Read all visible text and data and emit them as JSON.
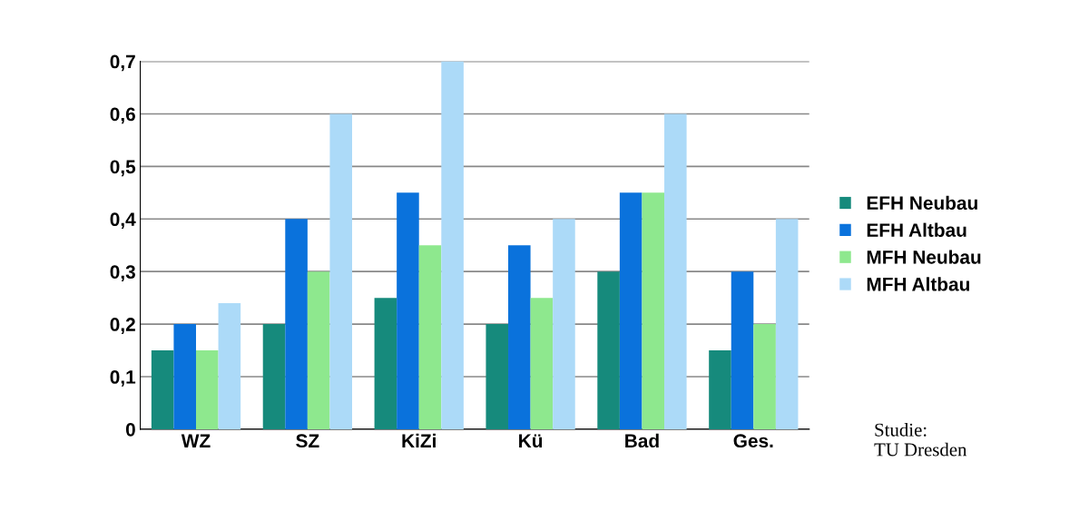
{
  "chart_data": {
    "type": "bar",
    "categories": [
      "WZ",
      "SZ",
      "KiZi",
      "Kü",
      "Bad",
      "Ges."
    ],
    "series": [
      {
        "name": "EFH Neubau",
        "color": "#168a7c",
        "values": [
          0.15,
          0.2,
          0.25,
          0.2,
          0.3,
          0.15
        ]
      },
      {
        "name": "EFH Altbau",
        "color": "#0a72dc",
        "values": [
          0.2,
          0.4,
          0.45,
          0.35,
          0.45,
          0.3
        ]
      },
      {
        "name": "MFH Neubau",
        "color": "#8ee88e",
        "values": [
          0.15,
          0.3,
          0.35,
          0.25,
          0.45,
          0.2
        ]
      },
      {
        "name": "MFH Altbau",
        "color": "#acdaf8",
        "values": [
          0.24,
          0.6,
          0.7,
          0.4,
          0.6,
          0.4
        ]
      }
    ],
    "ylim": [
      0,
      0.7
    ],
    "yticks": [
      0,
      {
        "value": 0.1,
        "label": "0,1"
      },
      {
        "value": 0.2,
        "label": "0,2"
      },
      {
        "value": 0.3,
        "label": "0,3"
      },
      {
        "value": 0.4,
        "label": "0,4"
      },
      {
        "value": 0.5,
        "label": "0,5"
      },
      {
        "value": 0.6,
        "label": "0,6"
      },
      {
        "value": 0.7,
        "label": "0,7"
      }
    ],
    "grid": "y",
    "legend": "right",
    "annotations": [
      "Studie:\nTU Dresden"
    ]
  }
}
